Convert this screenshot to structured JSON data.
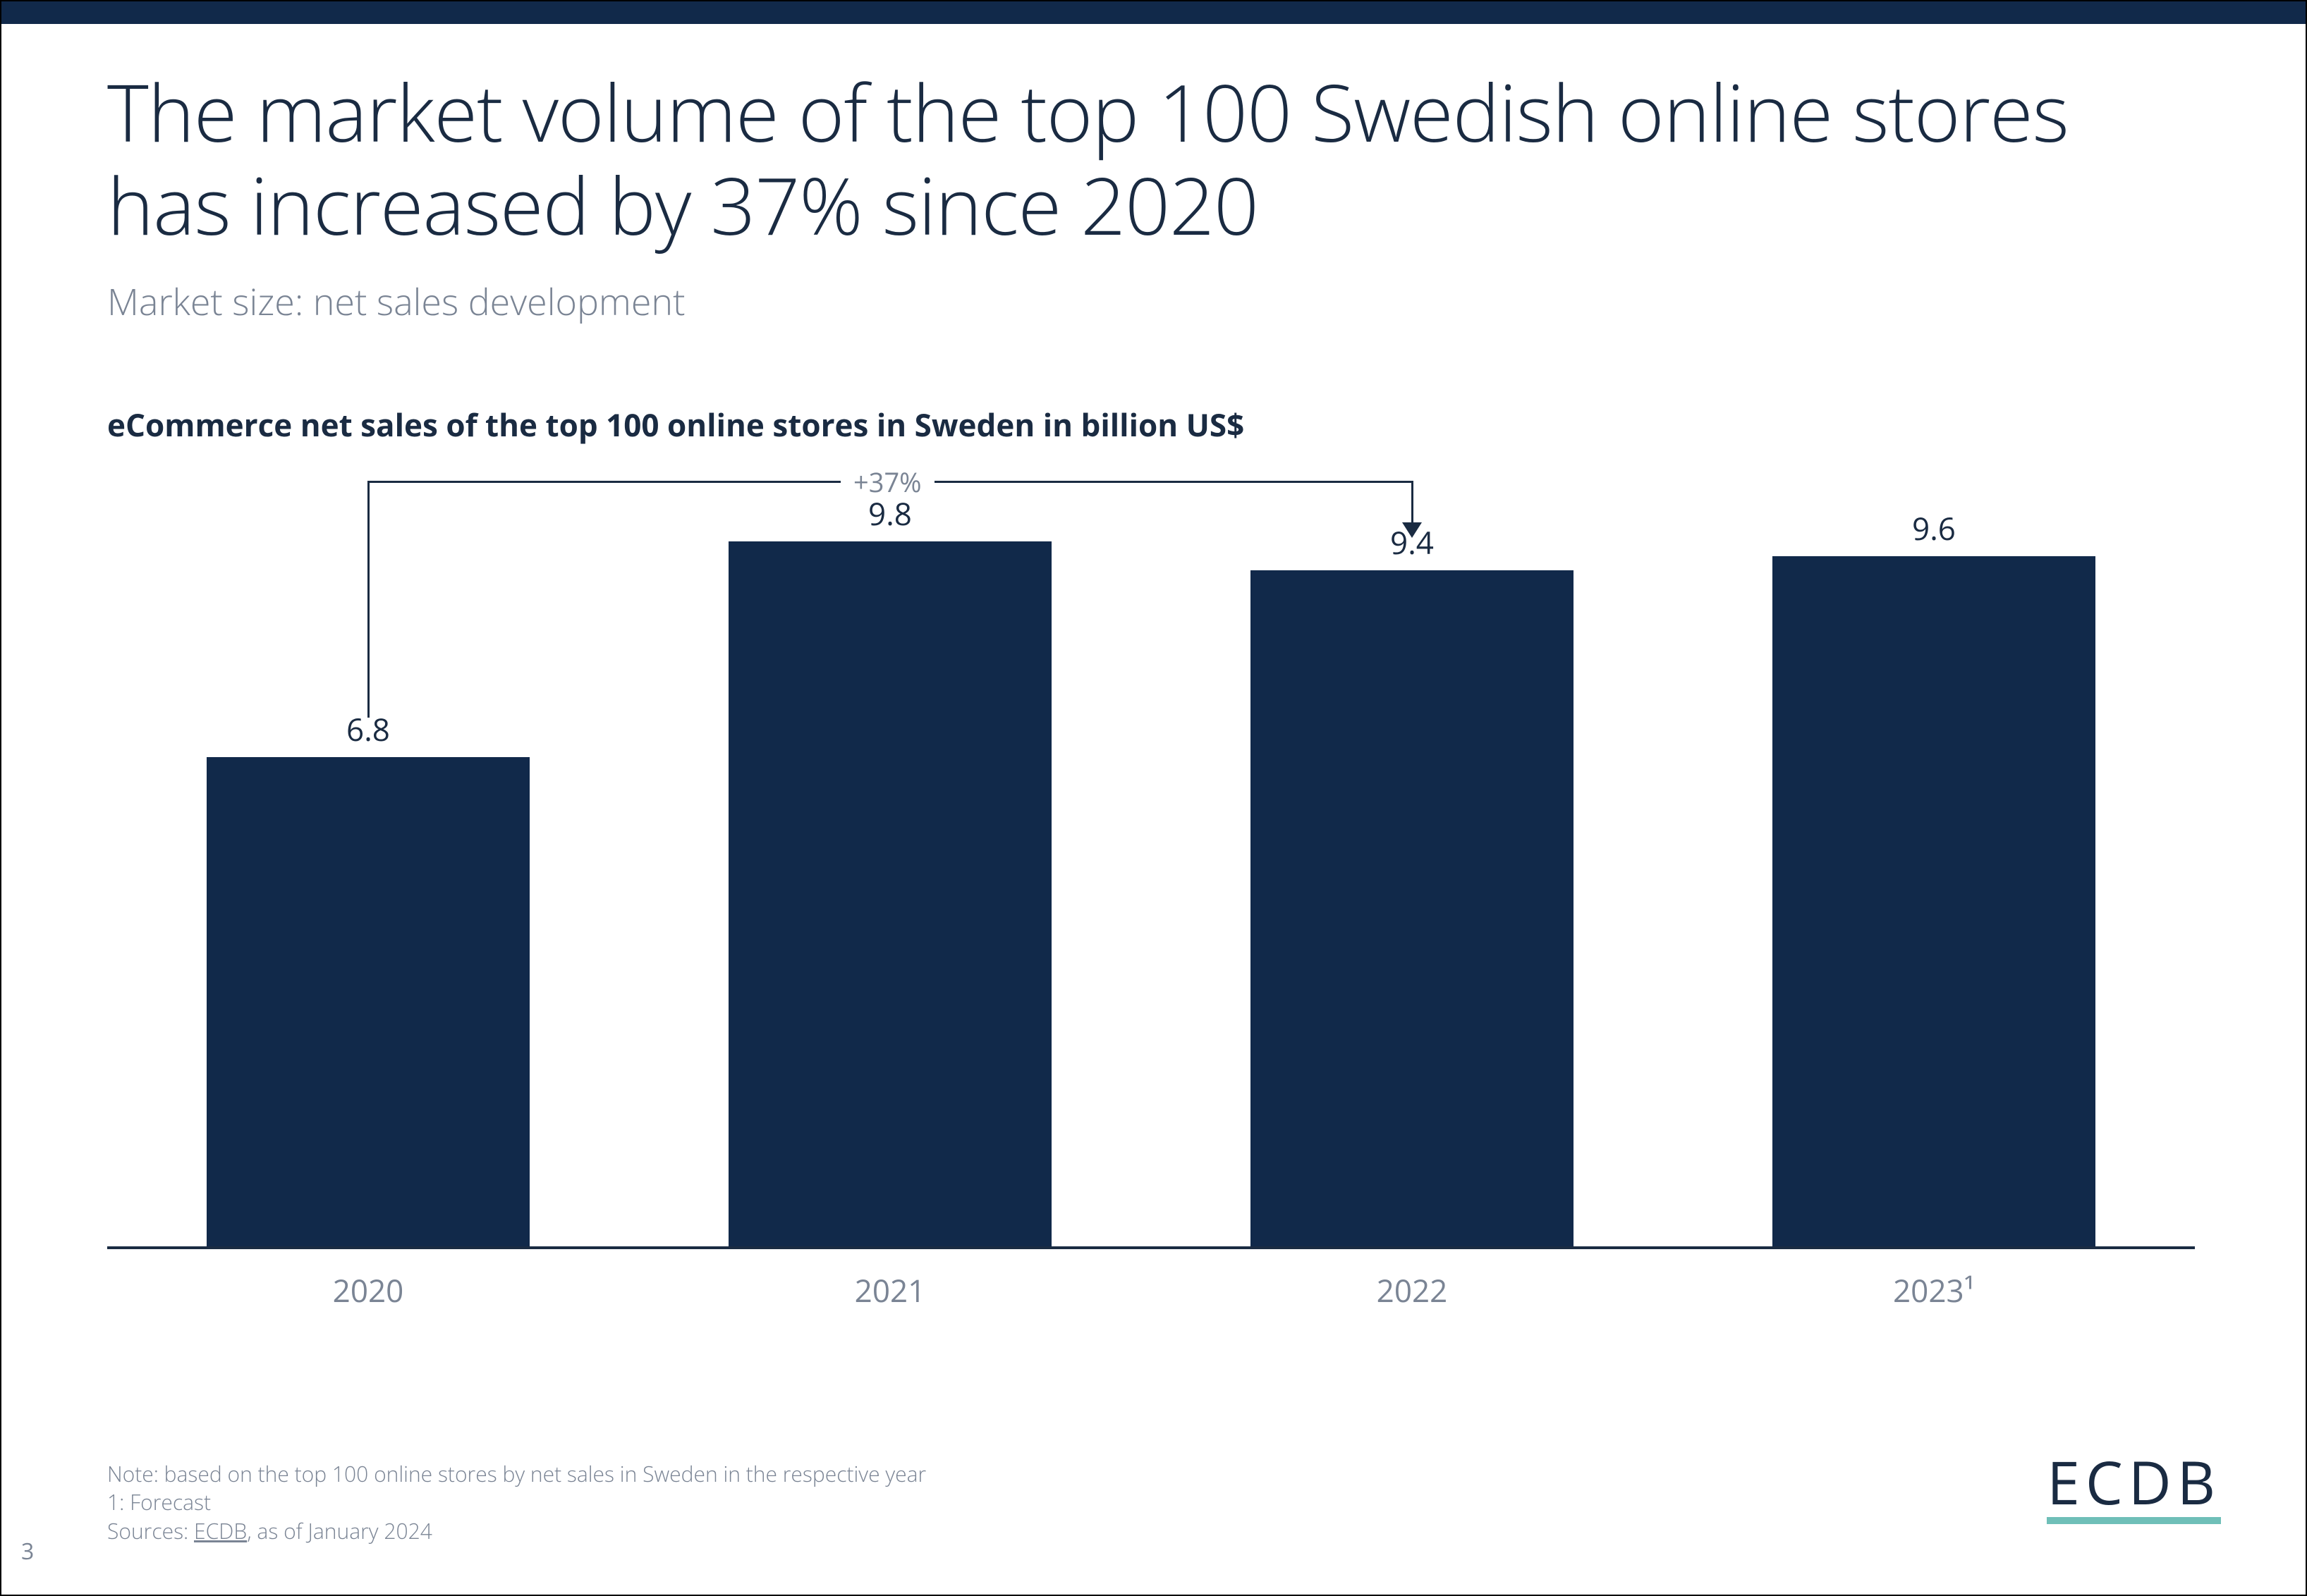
{
  "colors": {
    "top_bar": "#11294a",
    "title_text": "#1a2b42",
    "subtitle_text": "#7a8494",
    "bar_fill": "#11294a",
    "axis": "#1a2b42",
    "footnote_text": "#7a8494",
    "logo_text": "#1a2b42",
    "logo_underline": "#6fbfb8",
    "background": "#ffffff",
    "callout_text": "#7a8494"
  },
  "header": {
    "title": "The market volume of the top 100 Swedish online stores has increased by 37% since 2020",
    "subtitle": "Market size: net sales development"
  },
  "chart": {
    "type": "bar",
    "title": "eCommerce net sales of the top 100 online stores in Sweden in billion US$",
    "categories": [
      "2020",
      "2021",
      "2022",
      "2023¹"
    ],
    "values": [
      6.8,
      9.8,
      9.4,
      9.6
    ],
    "value_labels": [
      "6.8",
      "9.8",
      "9.4",
      "9.6"
    ],
    "bar_color": "#11294a",
    "y_max": 10.0,
    "bar_width_ratio": 0.62,
    "label_fontsize": 44,
    "xlabel_fontsize": 44,
    "title_fontsize": 44,
    "callout": {
      "from_index": 0,
      "to_index": 2,
      "label": "+37%"
    }
  },
  "footnotes": {
    "note": "Note: based on the top 100 online stores by net sales in Sweden in the respective year",
    "footnote1": "1: Forecast",
    "sources_prefix": "Sources: ",
    "sources_link": "ECDB",
    "sources_suffix": ", as of January 2024"
  },
  "page_number": "3",
  "logo": {
    "text": "ECDB"
  }
}
